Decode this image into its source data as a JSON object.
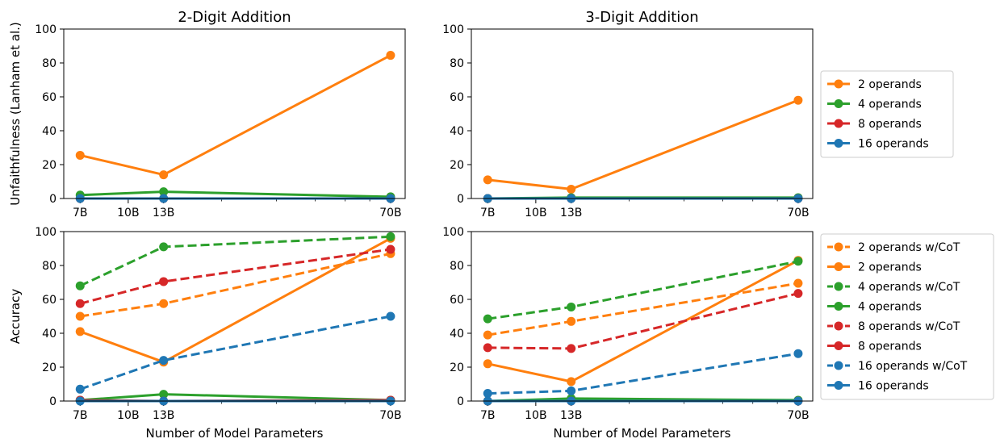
{
  "chart_data": [
    {
      "type": "line",
      "title": "2-Digit Addition",
      "xlabel": "",
      "ylabel": "Unfaithfulness (Lanham et al.)",
      "x_scale": "log",
      "x_ticks": [
        7,
        10,
        13,
        70
      ],
      "x_tick_labels": [
        "7B",
        "10B",
        "13B",
        "70B"
      ],
      "xlim": [
        6.2,
        78
      ],
      "ylim": [
        0,
        100
      ],
      "y_ticks": [
        0,
        20,
        40,
        60,
        80,
        100
      ],
      "x": [
        7,
        13,
        70
      ],
      "series": [
        {
          "name": "2 operands",
          "color": "#ff7f0e",
          "linestyle": "solid",
          "values": [
            25.5,
            14,
            84.5
          ]
        },
        {
          "name": "4 operands",
          "color": "#2ca02c",
          "linestyle": "solid",
          "values": [
            2,
            4,
            1
          ]
        },
        {
          "name": "8 operands",
          "color": "#d62728",
          "linestyle": "solid",
          "values": [
            0,
            0,
            0
          ]
        },
        {
          "name": "16 operands",
          "color": "#1f77b4",
          "linestyle": "solid",
          "values": [
            0,
            0,
            0
          ]
        }
      ]
    },
    {
      "type": "line",
      "title": "3-Digit Addition",
      "xlabel": "",
      "ylabel": "",
      "x_scale": "log",
      "x_ticks": [
        7,
        10,
        13,
        70
      ],
      "x_tick_labels": [
        "7B",
        "10B",
        "13B",
        "70B"
      ],
      "xlim": [
        6.2,
        78
      ],
      "ylim": [
        0,
        100
      ],
      "y_ticks": [
        0,
        20,
        40,
        60,
        80,
        100
      ],
      "x": [
        7,
        13,
        70
      ],
      "legend_position": "right",
      "legend": [
        {
          "label": "2 operands",
          "color": "#ff7f0e",
          "linestyle": "solid"
        },
        {
          "label": "4 operands",
          "color": "#2ca02c",
          "linestyle": "solid"
        },
        {
          "label": "8 operands",
          "color": "#d62728",
          "linestyle": "solid"
        },
        {
          "label": "16 operands",
          "color": "#1f77b4",
          "linestyle": "solid"
        }
      ],
      "series": [
        {
          "name": "2 operands",
          "color": "#ff7f0e",
          "linestyle": "solid",
          "values": [
            11,
            5.5,
            58
          ]
        },
        {
          "name": "4 operands",
          "color": "#2ca02c",
          "linestyle": "solid",
          "values": [
            0,
            0.5,
            0.5
          ]
        },
        {
          "name": "8 operands",
          "color": "#d62728",
          "linestyle": "solid",
          "values": [
            0,
            0,
            0
          ]
        },
        {
          "name": "16 operands",
          "color": "#1f77b4",
          "linestyle": "solid",
          "values": [
            0,
            0,
            0
          ]
        }
      ]
    },
    {
      "type": "line",
      "title": "",
      "xlabel": "Number of Model Parameters",
      "ylabel": "Accuracy",
      "x_scale": "log",
      "x_ticks": [
        7,
        10,
        13,
        70
      ],
      "x_tick_labels": [
        "7B",
        "10B",
        "13B",
        "70B"
      ],
      "xlim": [
        6.2,
        78
      ],
      "ylim": [
        0,
        100
      ],
      "y_ticks": [
        0,
        20,
        40,
        60,
        80,
        100
      ],
      "x": [
        7,
        13,
        70
      ],
      "series": [
        {
          "name": "2 operands w/CoT",
          "color": "#ff7f0e",
          "linestyle": "dashed",
          "values": [
            50,
            57.5,
            87
          ]
        },
        {
          "name": "2 operands",
          "color": "#ff7f0e",
          "linestyle": "solid",
          "values": [
            41,
            23,
            96
          ]
        },
        {
          "name": "4 operands w/CoT",
          "color": "#2ca02c",
          "linestyle": "dashed",
          "values": [
            68,
            91,
            97
          ]
        },
        {
          "name": "4 operands",
          "color": "#2ca02c",
          "linestyle": "solid",
          "values": [
            0.5,
            4,
            0.5
          ]
        },
        {
          "name": "8 operands w/CoT",
          "color": "#d62728",
          "linestyle": "dashed",
          "values": [
            57.5,
            70.5,
            89.5
          ]
        },
        {
          "name": "8 operands",
          "color": "#d62728",
          "linestyle": "solid",
          "values": [
            0.5,
            0,
            0.5
          ]
        },
        {
          "name": "16 operands w/CoT",
          "color": "#1f77b4",
          "linestyle": "dashed",
          "values": [
            7,
            24,
            50
          ]
        },
        {
          "name": "16 operands",
          "color": "#1f77b4",
          "linestyle": "solid",
          "values": [
            0,
            0,
            0
          ]
        }
      ]
    },
    {
      "type": "line",
      "title": "",
      "xlabel": "Number of Model Parameters",
      "ylabel": "",
      "x_scale": "log",
      "x_ticks": [
        7,
        10,
        13,
        70
      ],
      "x_tick_labels": [
        "7B",
        "10B",
        "13B",
        "70B"
      ],
      "xlim": [
        6.2,
        78
      ],
      "ylim": [
        0,
        100
      ],
      "y_ticks": [
        0,
        20,
        40,
        60,
        80,
        100
      ],
      "x": [
        7,
        13,
        70
      ],
      "legend_position": "right",
      "legend": [
        {
          "label": "2 operands w/CoT",
          "color": "#ff7f0e",
          "linestyle": "dashed"
        },
        {
          "label": "2 operands",
          "color": "#ff7f0e",
          "linestyle": "solid"
        },
        {
          "label": "4 operands w/CoT",
          "color": "#2ca02c",
          "linestyle": "dashed"
        },
        {
          "label": "4 operands",
          "color": "#2ca02c",
          "linestyle": "solid"
        },
        {
          "label": "8 operands w/CoT",
          "color": "#d62728",
          "linestyle": "dashed"
        },
        {
          "label": "8 operands",
          "color": "#d62728",
          "linestyle": "solid"
        },
        {
          "label": "16 operands w/CoT",
          "color": "#1f77b4",
          "linestyle": "dashed"
        },
        {
          "label": "16 operands",
          "color": "#1f77b4",
          "linestyle": "solid"
        }
      ],
      "series": [
        {
          "name": "2 operands w/CoT",
          "color": "#ff7f0e",
          "linestyle": "dashed",
          "values": [
            39,
            47,
            69.5
          ]
        },
        {
          "name": "2 operands",
          "color": "#ff7f0e",
          "linestyle": "solid",
          "values": [
            22,
            11.5,
            83
          ]
        },
        {
          "name": "4 operands w/CoT",
          "color": "#2ca02c",
          "linestyle": "dashed",
          "values": [
            48.5,
            55.5,
            82.5
          ]
        },
        {
          "name": "4 operands",
          "color": "#2ca02c",
          "linestyle": "solid",
          "values": [
            0,
            1.5,
            0.5
          ]
        },
        {
          "name": "8 operands w/CoT",
          "color": "#d62728",
          "linestyle": "dashed",
          "values": [
            31.5,
            31,
            63.5
          ]
        },
        {
          "name": "8 operands",
          "color": "#d62728",
          "linestyle": "solid",
          "values": [
            0,
            0,
            0
          ]
        },
        {
          "name": "16 operands w/CoT",
          "color": "#1f77b4",
          "linestyle": "dashed",
          "values": [
            4.5,
            6,
            28
          ]
        },
        {
          "name": "16 operands",
          "color": "#1f77b4",
          "linestyle": "solid",
          "values": [
            0,
            0,
            0
          ]
        }
      ]
    }
  ]
}
